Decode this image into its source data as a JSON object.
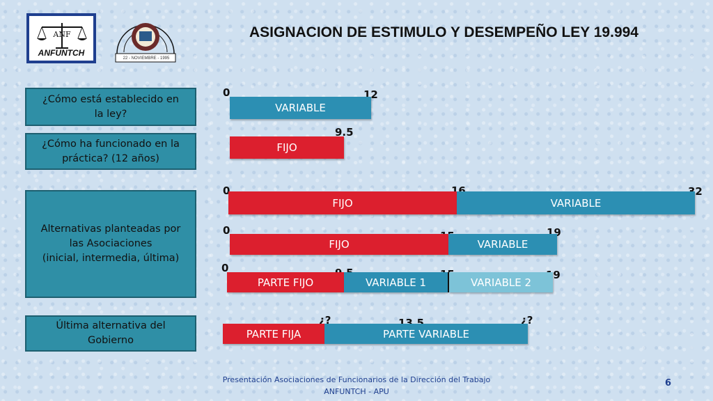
{
  "logos": {
    "anfuntch_text": "ANFUNTCH",
    "assoc_date": "22 - NOVIEMBRE - 1995"
  },
  "title": "ASIGNACION DE ESTIMULO Y DESEMPEÑO LEY 19.994",
  "questions": {
    "q1": [
      "¿Cómo está establecido en",
      "la ley?"
    ],
    "q2": [
      "¿Cómo ha funcionado en la",
      "práctica? (12 años)"
    ],
    "q3": [
      "Alternativas planteadas por",
      "las Asociaciones",
      "(inicial, intermedia, última)"
    ],
    "q4": [
      "Última alternativa del",
      "Gobierno"
    ]
  },
  "rows": {
    "row1": {
      "bar_label": "VARIABLE",
      "start": "0",
      "end": "12"
    },
    "row2": {
      "bar_label": "FIJO",
      "end": "9.5"
    },
    "row3": {
      "fijo_label": "FIJO",
      "variable_label": "VARIABLE",
      "start": "0",
      "mid": "16",
      "end": "32"
    },
    "row4": {
      "fijo_label": "FIJO",
      "variable_label": "VARIABLE",
      "start": "0",
      "mid": "15",
      "end": "19"
    },
    "row5": {
      "fijo_label": "PARTE FIJO",
      "var1_label": "VARIABLE  1",
      "var2_label": "VARIABLE 2",
      "start": "0",
      "mid1": "9.5",
      "mid2": "15",
      "end": "19"
    },
    "row6": {
      "fijo_label": "PARTE FIJA",
      "variable_label": "PARTE VARIABLE",
      "start": "¿?",
      "mid": "13.5",
      "end": "¿?"
    }
  },
  "footer": {
    "line1": "Presentación Asociaciones de Funcionarios de la Dirección del Trabajo",
    "line2": "ANFUNTCH - APU",
    "page": "6"
  },
  "colors": {
    "red": "#dc1f2e",
    "teal": "#2c8fb3",
    "light_teal": "#7dc3d8",
    "box": "#2f8fa6"
  }
}
